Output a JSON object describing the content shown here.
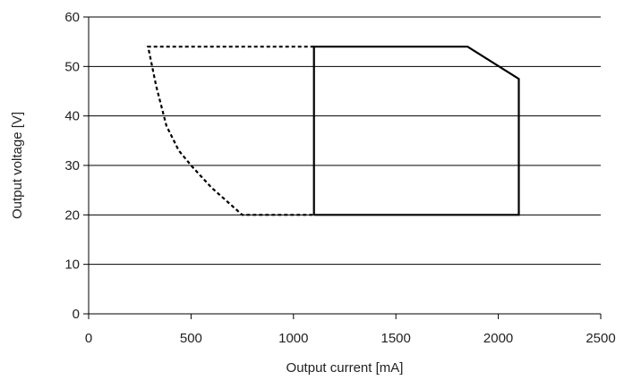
{
  "chart_data": {
    "type": "line",
    "xlabel": "Output current [mA]",
    "ylabel": "Output voltage [V]",
    "xlim": [
      0,
      2500
    ],
    "ylim": [
      0,
      60
    ],
    "x_ticks": [
      0,
      500,
      1000,
      1500,
      2000,
      2500
    ],
    "y_ticks": [
      0,
      10,
      20,
      30,
      40,
      50,
      60
    ],
    "x_tick_labels": [
      "0",
      "500",
      "1000",
      "1500",
      "2000",
      "2500"
    ],
    "y_tick_labels": [
      "0",
      "10",
      "20",
      "30",
      "40",
      "50",
      "60"
    ],
    "grid": "horizontal",
    "legend": "none",
    "series": [
      {
        "style": "dashed",
        "color": "#000000",
        "points": [
          [
            1100,
            54
          ],
          [
            290,
            54
          ],
          [
            330,
            46
          ],
          [
            380,
            38
          ],
          [
            440,
            33
          ],
          [
            500,
            30
          ],
          [
            600,
            25.5
          ],
          [
            750,
            20
          ],
          [
            1100,
            20
          ]
        ]
      },
      {
        "style": "solid",
        "color": "#000000",
        "points": [
          [
            1100,
            20
          ],
          [
            1100,
            54
          ],
          [
            1850,
            54
          ],
          [
            2100,
            47.5
          ],
          [
            2100,
            20
          ],
          [
            1100,
            20
          ]
        ]
      }
    ]
  }
}
